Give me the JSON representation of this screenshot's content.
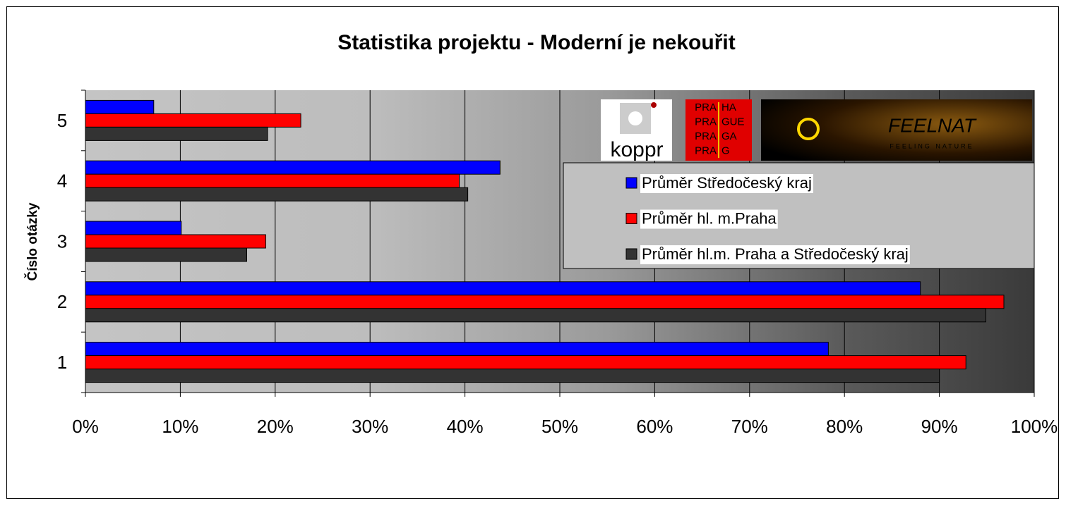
{
  "chart_data": {
    "type": "hbar",
    "title": "Statistika projektu - Moderní je nekouřit",
    "y_label": "Číslo otázky",
    "categories": [
      "1",
      "2",
      "3",
      "4",
      "5"
    ],
    "series": [
      {
        "name": "Průměr Středočeský kraj",
        "color": "#0000ff",
        "values": [
          78.3,
          88.0,
          10.1,
          43.7,
          7.2
        ]
      },
      {
        "name": "Průměr hl. m.Praha",
        "color": "#ff0000",
        "values": [
          92.8,
          96.8,
          19.0,
          39.4,
          22.7
        ]
      },
      {
        "name": "Průměr hl.m. Praha a Středočeský kraj",
        "color": "#333333",
        "values": [
          90.0,
          94.9,
          17.0,
          40.3,
          19.2
        ]
      }
    ],
    "xlim": [
      0,
      100
    ],
    "xticks": [
      {
        "value": 0,
        "label": "0%"
      },
      {
        "value": 10,
        "label": "10%"
      },
      {
        "value": 20,
        "label": "20%"
      },
      {
        "value": 30,
        "label": "30%"
      },
      {
        "value": 40,
        "label": "40%"
      },
      {
        "value": 50,
        "label": "50%"
      },
      {
        "value": 60,
        "label": "60%"
      },
      {
        "value": 70,
        "label": "70%"
      },
      {
        "value": 80,
        "label": "80%"
      },
      {
        "value": 90,
        "label": "90%"
      },
      {
        "value": 100,
        "label": "100%"
      }
    ],
    "grid": true,
    "legend": "upper right",
    "logos": {
      "koppr": "koppr",
      "praha": [
        [
          "PRA",
          "HA"
        ],
        [
          "PRA",
          "GUE"
        ],
        [
          "PRA",
          "GA"
        ],
        [
          "PRA",
          "G"
        ]
      ],
      "feelnat": "FEELNAT",
      "feelnat_sub": "FEELING NATURE"
    }
  }
}
